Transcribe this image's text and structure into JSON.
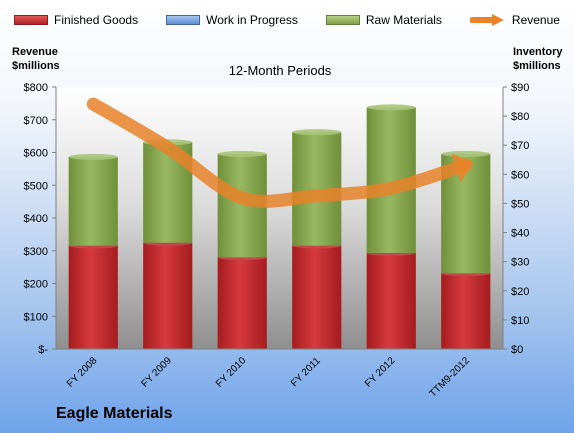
{
  "company": "Eagle Materials",
  "chart_data": {
    "type": "bar",
    "stacked": true,
    "title": "12-Month Periods",
    "categories": [
      "FY 2008",
      "FY 2009",
      "FY 2010",
      "FY 2011",
      "FY 2012",
      "TTM9-2012"
    ],
    "series": [
      {
        "name": "Finished Goods",
        "axis": "right",
        "color": "#c0282b",
        "values": [
          35.5,
          36.5,
          31.5,
          35.5,
          33,
          26
        ]
      },
      {
        "name": "Work in Progress",
        "axis": "right",
        "color": "#5b8fd2",
        "values": [
          0,
          0,
          0,
          0,
          0,
          0
        ]
      },
      {
        "name": "Raw Materials",
        "axis": "right",
        "color": "#8aab4f",
        "values": [
          30.5,
          34.5,
          35.5,
          39,
          50,
          41
        ]
      },
      {
        "name": "Revenue",
        "axis": "left",
        "type": "line",
        "color": "#e8832a",
        "values": [
          748,
          615,
          461,
          468,
          491,
          562
        ]
      }
    ],
    "left_axis": {
      "label_line1": "Revenue",
      "label_line2": "$millions",
      "range": [
        0,
        800
      ],
      "ticks": [
        "$-",
        "$100",
        "$200",
        "$300",
        "$400",
        "$500",
        "$600",
        "$700",
        "$800"
      ]
    },
    "right_axis": {
      "label_line1": "Inventory",
      "label_line2": "$millions",
      "range": [
        0,
        90
      ],
      "ticks": [
        "$0",
        "$10",
        "$20",
        "$30",
        "$40",
        "$50",
        "$60",
        "$70",
        "$80",
        "$90"
      ]
    },
    "legend_position": "top",
    "grid": false
  }
}
